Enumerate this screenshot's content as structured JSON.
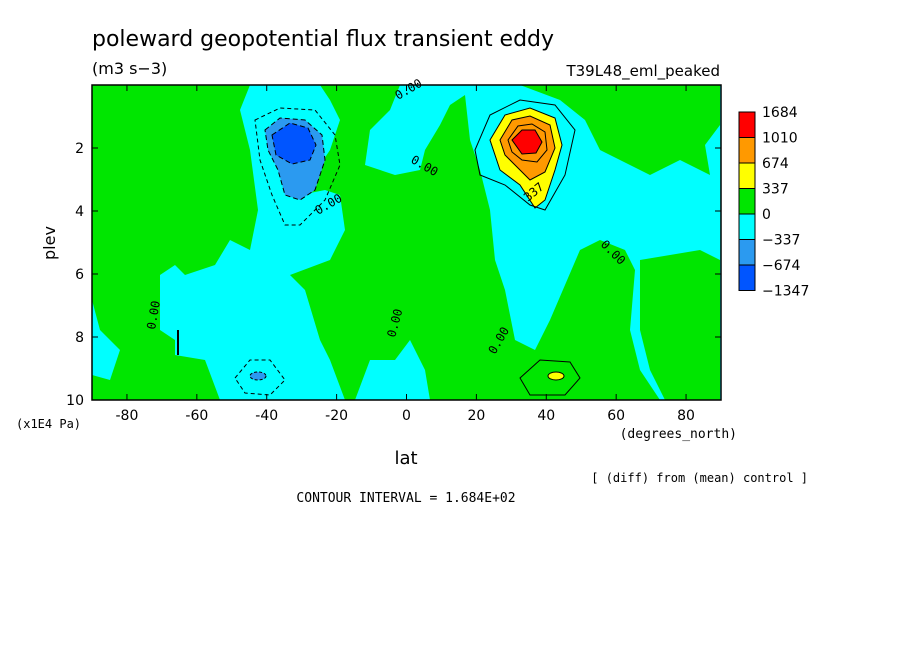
{
  "chart_data": {
    "type": "heatmap",
    "title": "poleward geopotential flux transient eddy",
    "units": "(m3 s−3)",
    "experiment": "T39L48_eml_peaked",
    "xlabel": "lat",
    "x_units": "(degrees_north)",
    "ylabel": "plev",
    "y_units": "(x1E4 Pa)",
    "xlim": [
      -90,
      90
    ],
    "ylim": [
      10,
      0
    ],
    "x_ticks": [
      "-80",
      "-60",
      "-40",
      "-20",
      "0",
      "20",
      "40",
      "60",
      "80"
    ],
    "y_ticks": [
      "2",
      "4",
      "6",
      "8",
      "10"
    ],
    "contour_interval": "CONTOUR INTERVAL = 1.684E+02",
    "note": "[ (diff) from (mean) control ]",
    "contour_labels": [
      "0.00",
      "0.00",
      "0.00",
      "0.00",
      "0.00",
      "0.00",
      "0.00",
      "337"
    ],
    "legend": {
      "levels": [
        "1684",
        "1010",
        "674",
        "337",
        "0",
        "−337",
        "−674",
        "−1347"
      ],
      "colors": [
        "#ff0000",
        "#ff9900",
        "#ffff00",
        "#00e600",
        "#00ffff",
        "#2b9af0",
        "#0055ff"
      ]
    },
    "features": [
      {
        "name": "positive maximum",
        "lat": 33,
        "plev": 1.9,
        "value": 1684
      },
      {
        "name": "negative minimum",
        "lat": -33,
        "plev": 2.0,
        "value": -1347
      }
    ]
  }
}
